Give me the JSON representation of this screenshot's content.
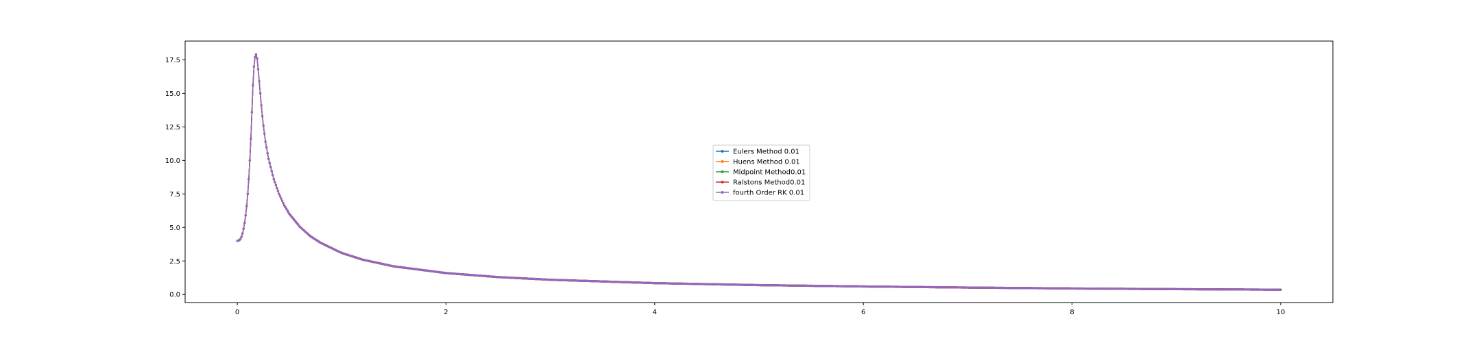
{
  "chart_data": {
    "type": "line",
    "title": "",
    "xlabel": "",
    "ylabel": "",
    "xlim": [
      -0.5,
      10.5
    ],
    "ylim": [
      -0.6,
      18.9
    ],
    "x_ticks": [
      0,
      2,
      4,
      6,
      8,
      10
    ],
    "x_tick_labels": [
      "0",
      "2",
      "4",
      "6",
      "8",
      "10"
    ],
    "y_ticks": [
      0.0,
      2.5,
      5.0,
      7.5,
      10.0,
      12.5,
      15.0,
      17.5
    ],
    "y_tick_labels": [
      "0.0",
      "2.5",
      "5.0",
      "7.5",
      "10.0",
      "12.5",
      "15.0",
      "17.5"
    ],
    "grid": false,
    "legend_position": "center",
    "x": [
      0,
      0.01,
      0.02,
      0.03,
      0.04,
      0.05,
      0.06,
      0.07,
      0.08,
      0.09,
      0.1,
      0.11,
      0.12,
      0.13,
      0.14,
      0.15,
      0.16,
      0.17,
      0.18,
      0.19,
      0.2,
      0.21,
      0.22,
      0.23,
      0.24,
      0.25,
      0.27,
      0.3,
      0.35,
      0.4,
      0.45,
      0.5,
      0.6,
      0.7,
      0.8,
      1.0,
      1.2,
      1.5,
      2.0,
      2.5,
      3.0,
      4.0,
      5.0,
      6.0,
      7.0,
      8.0,
      9.0,
      10.0
    ],
    "series": [
      {
        "name": "Eulers Method 0.01",
        "color": "#1f77b4",
        "values": [
          4.0,
          4.02,
          4.06,
          4.15,
          4.3,
          4.55,
          4.9,
          5.35,
          5.9,
          6.6,
          7.5,
          8.6,
          10.0,
          11.6,
          13.6,
          15.6,
          17.0,
          17.7,
          17.9,
          17.6,
          16.8,
          15.9,
          15.0,
          14.1,
          13.3,
          12.6,
          11.4,
          10.1,
          8.6,
          7.5,
          6.65,
          6.0,
          5.05,
          4.35,
          3.85,
          3.1,
          2.6,
          2.1,
          1.6,
          1.3,
          1.1,
          0.85,
          0.7,
          0.6,
          0.52,
          0.45,
          0.4,
          0.36
        ]
      },
      {
        "name": "Huens Method 0.01",
        "color": "#ff7f0e",
        "values": [
          4.0,
          4.02,
          4.06,
          4.15,
          4.3,
          4.55,
          4.9,
          5.35,
          5.9,
          6.6,
          7.5,
          8.6,
          10.0,
          11.6,
          13.6,
          15.6,
          17.0,
          17.7,
          17.9,
          17.6,
          16.8,
          15.9,
          15.0,
          14.1,
          13.3,
          12.6,
          11.4,
          10.1,
          8.6,
          7.5,
          6.65,
          6.0,
          5.05,
          4.35,
          3.85,
          3.1,
          2.6,
          2.1,
          1.6,
          1.3,
          1.1,
          0.85,
          0.7,
          0.6,
          0.52,
          0.45,
          0.4,
          0.36
        ]
      },
      {
        "name": "Midpoint Method0.01",
        "color": "#2ca02c",
        "values": [
          4.0,
          4.02,
          4.06,
          4.15,
          4.3,
          4.55,
          4.9,
          5.35,
          5.9,
          6.6,
          7.5,
          8.6,
          10.0,
          11.6,
          13.6,
          15.6,
          17.0,
          17.7,
          17.9,
          17.6,
          16.8,
          15.9,
          15.0,
          14.1,
          13.3,
          12.6,
          11.4,
          10.1,
          8.6,
          7.5,
          6.65,
          6.0,
          5.05,
          4.35,
          3.85,
          3.1,
          2.6,
          2.1,
          1.6,
          1.3,
          1.1,
          0.85,
          0.7,
          0.6,
          0.52,
          0.45,
          0.4,
          0.36
        ]
      },
      {
        "name": "Ralstons Method0.01",
        "color": "#d62728",
        "values": [
          4.0,
          4.02,
          4.06,
          4.15,
          4.3,
          4.55,
          4.9,
          5.35,
          5.9,
          6.6,
          7.5,
          8.6,
          10.0,
          11.6,
          13.6,
          15.6,
          17.0,
          17.7,
          17.9,
          17.6,
          16.8,
          15.9,
          15.0,
          14.1,
          13.3,
          12.6,
          11.4,
          10.1,
          8.6,
          7.5,
          6.65,
          6.0,
          5.05,
          4.35,
          3.85,
          3.1,
          2.6,
          2.1,
          1.6,
          1.3,
          1.1,
          0.85,
          0.7,
          0.6,
          0.52,
          0.45,
          0.4,
          0.36
        ]
      },
      {
        "name": "fourth Order RK 0.01",
        "color": "#9467bd",
        "values": [
          4.0,
          4.02,
          4.06,
          4.15,
          4.3,
          4.55,
          4.9,
          5.35,
          5.9,
          6.6,
          7.5,
          8.6,
          10.0,
          11.6,
          13.6,
          15.6,
          17.0,
          17.7,
          17.9,
          17.6,
          16.8,
          15.9,
          15.0,
          14.1,
          13.3,
          12.6,
          11.4,
          10.1,
          8.6,
          7.5,
          6.65,
          6.0,
          5.05,
          4.35,
          3.85,
          3.1,
          2.6,
          2.1,
          1.6,
          1.3,
          1.1,
          0.85,
          0.7,
          0.6,
          0.52,
          0.45,
          0.4,
          0.36
        ]
      }
    ]
  }
}
